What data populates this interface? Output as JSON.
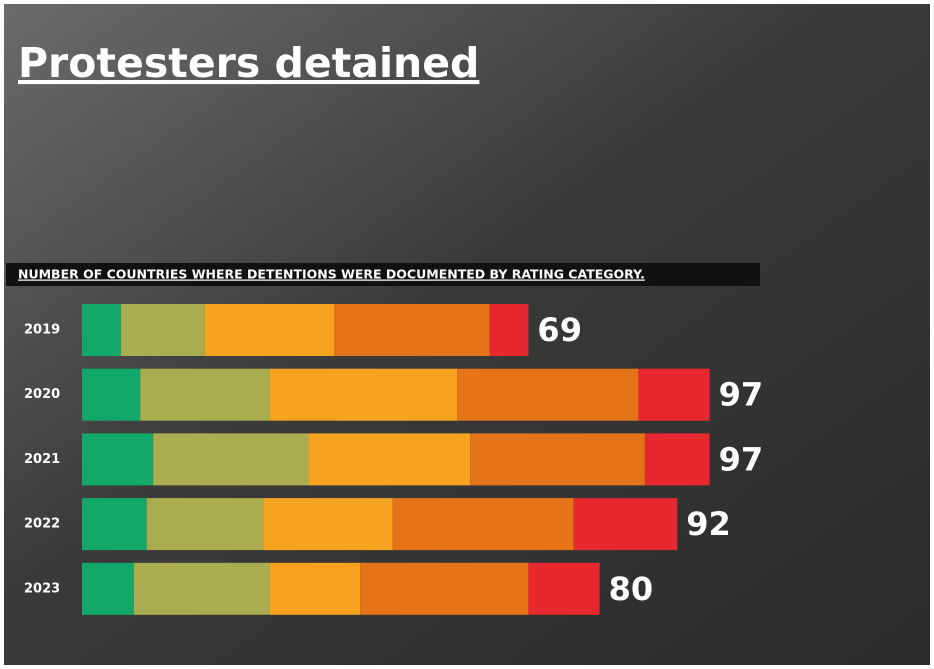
{
  "chart_data": {
    "type": "stacked-bar-horizontal",
    "title": "Protesters detained",
    "subtitle": "NUMBER OF COUNTRIES WHERE DETENTIONS WERE DOCUMENTED BY RATING CATEGORY.",
    "categories": [
      "2019",
      "2020",
      "2021",
      "2022",
      "2023"
    ],
    "series": [
      {
        "color": "#11a86a",
        "values": [
          6,
          9,
          11,
          10,
          8
        ]
      },
      {
        "color": "#aaad4f",
        "values": [
          13,
          20,
          24,
          18,
          21
        ]
      },
      {
        "color": "#f5a31f",
        "values": [
          20,
          29,
          25,
          20,
          14
        ]
      },
      {
        "color": "#e57418",
        "values": [
          24,
          28,
          27,
          28,
          26
        ]
      },
      {
        "color": "#e8282f",
        "values": [
          6,
          11,
          10,
          16,
          11
        ]
      }
    ],
    "totals": [
      69,
      97,
      97,
      92,
      80
    ]
  }
}
